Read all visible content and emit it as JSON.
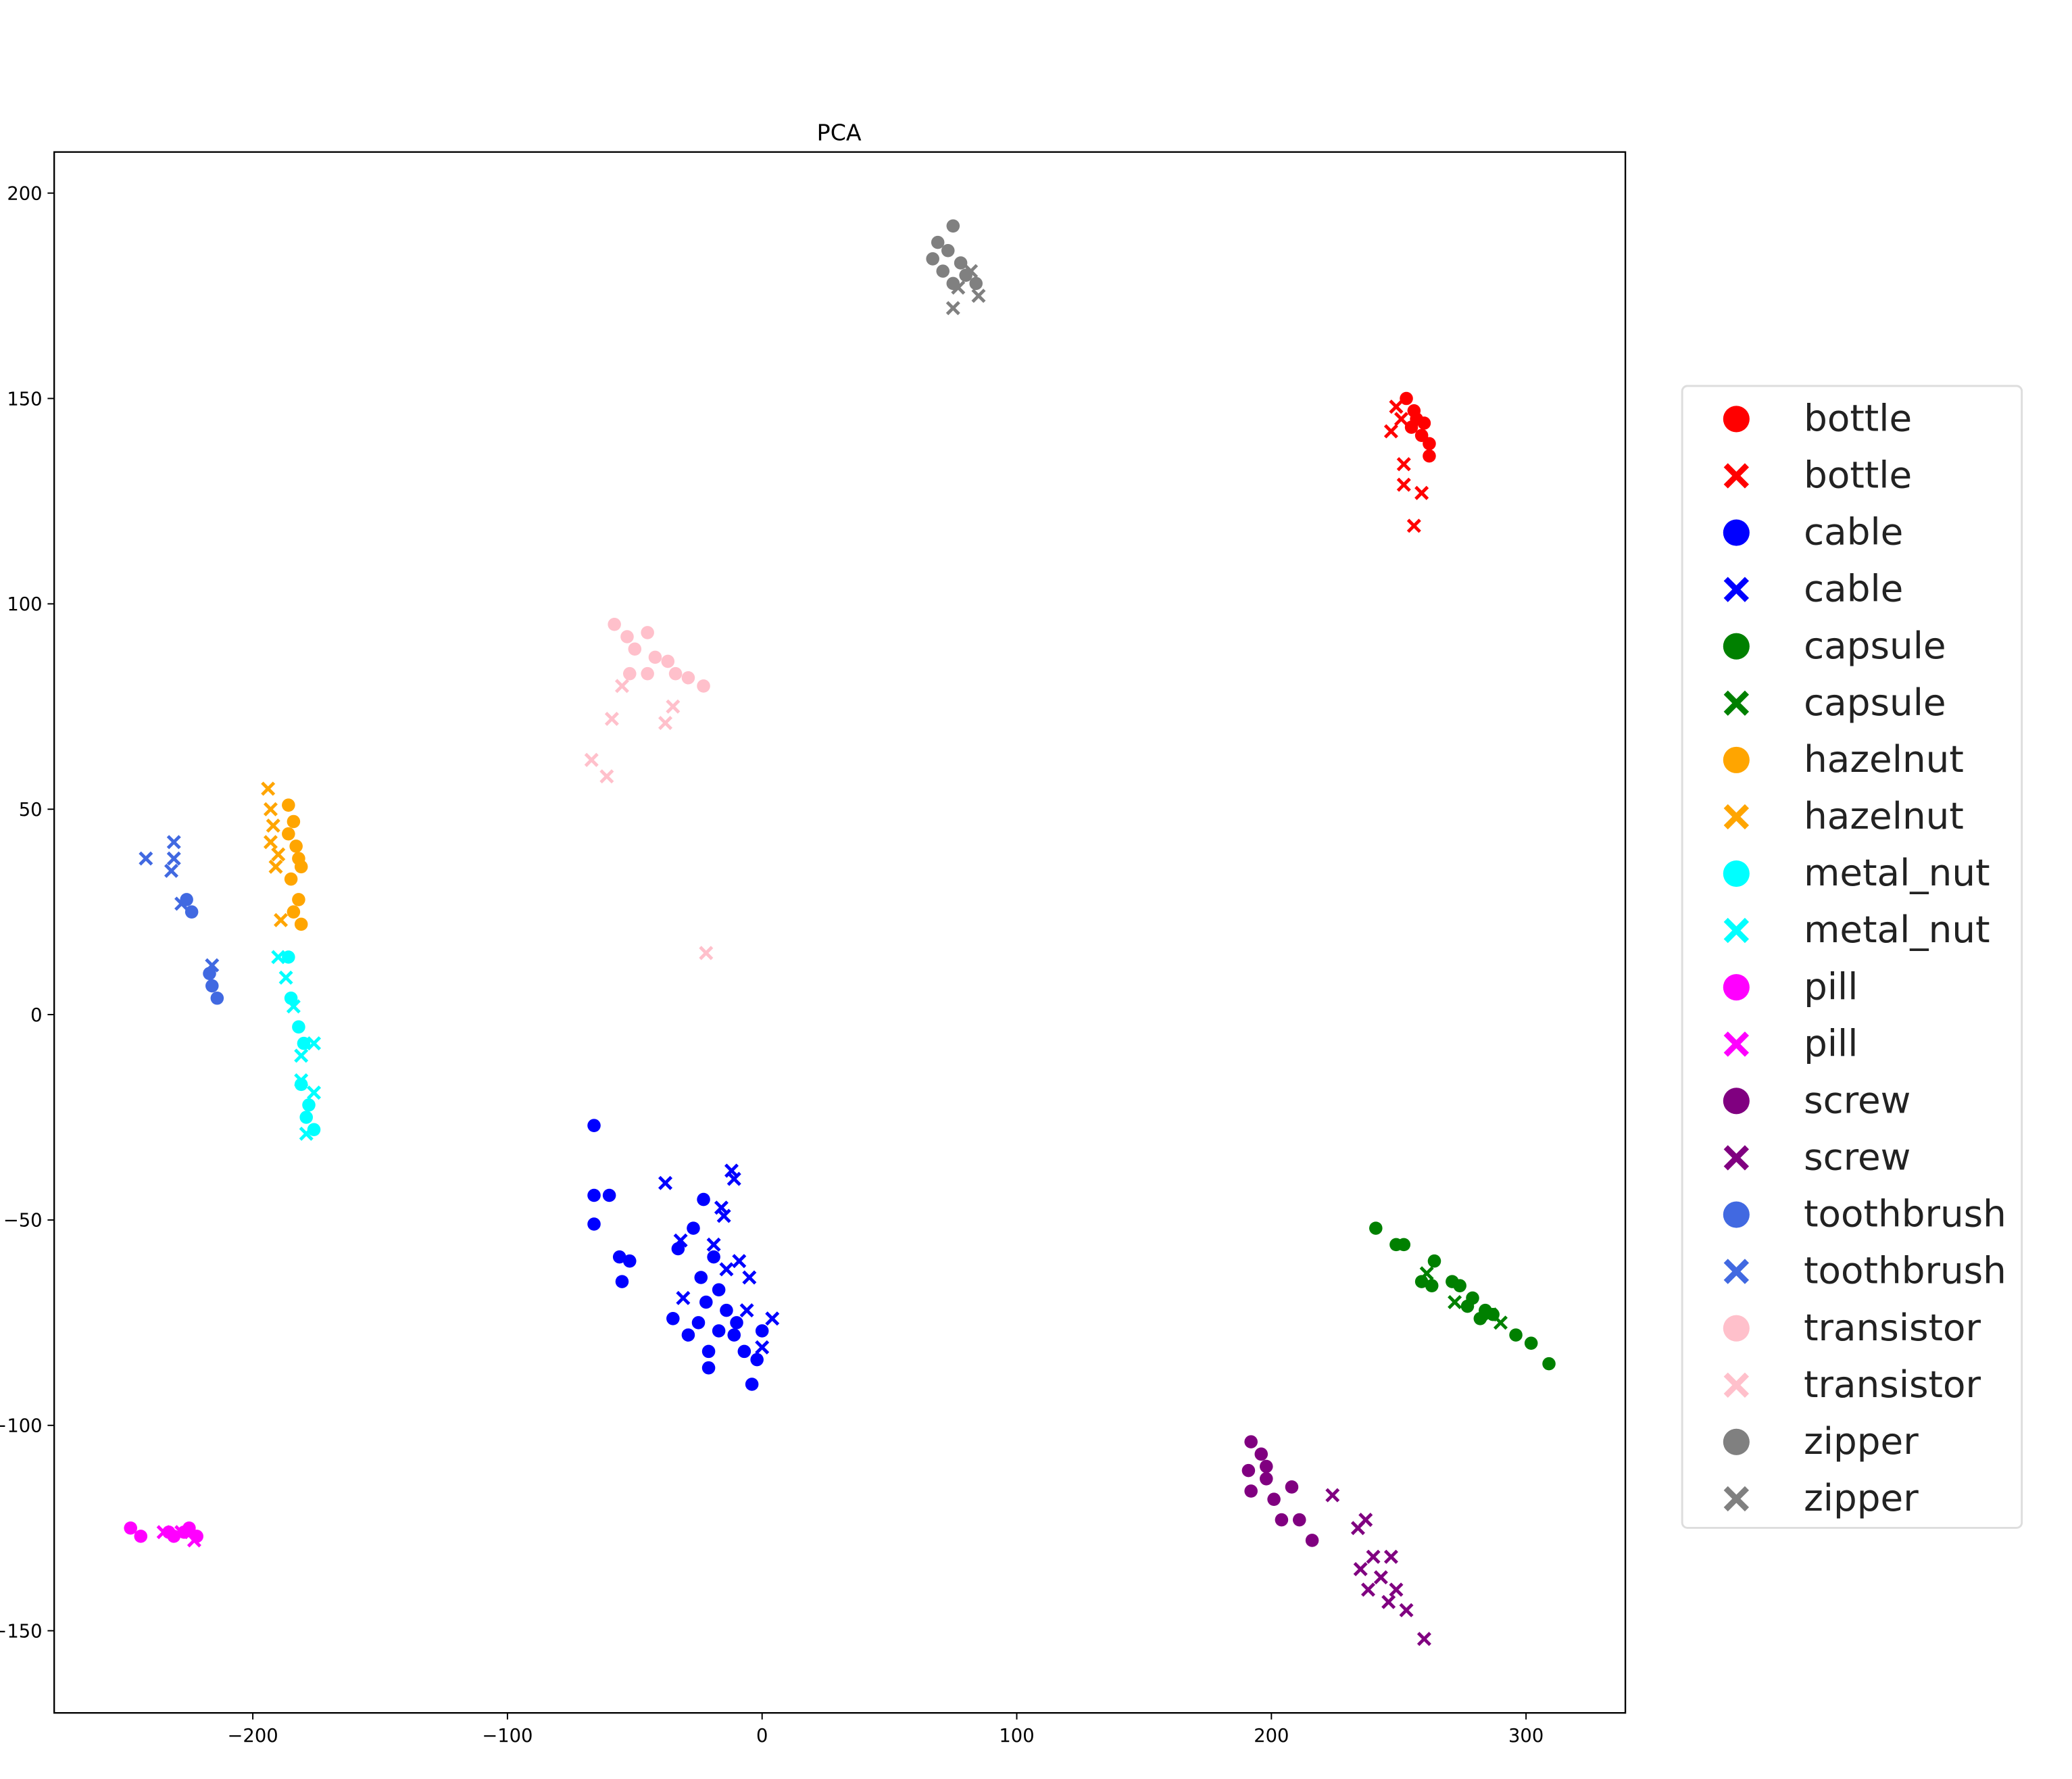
{
  "chart_data": {
    "type": "scatter",
    "title": "PCA",
    "xlabel": "",
    "ylabel": "",
    "xlim": [
      -278,
      339
    ],
    "ylim": [
      -170,
      210
    ],
    "xticks": [
      -200,
      -100,
      0,
      100,
      200,
      300
    ],
    "yticks": [
      200,
      150,
      100,
      50,
      0,
      -50,
      -100,
      -150
    ],
    "xtick_labels": [
      "−200",
      "−100",
      "0",
      "100",
      "200",
      "300"
    ],
    "ytick_labels": [
      "200",
      "150",
      "100",
      "50",
      "0",
      "−50",
      "−100",
      "−150"
    ],
    "grid": false,
    "legend_position": "right, outside",
    "series": [
      {
        "name": "bottle",
        "marker": "circle",
        "color": "#ff0000",
        "points": [
          [
            253,
            150
          ],
          [
            256,
            147
          ],
          [
            255,
            143
          ],
          [
            259,
            141
          ],
          [
            262,
            139
          ],
          [
            262,
            136
          ],
          [
            257,
            145
          ],
          [
            260,
            144
          ]
        ]
      },
      {
        "name": "bottle",
        "marker": "x",
        "color": "#ff0000",
        "points": [
          [
            249,
            148
          ],
          [
            247,
            142
          ],
          [
            252,
            134
          ],
          [
            252,
            129
          ],
          [
            259,
            127
          ],
          [
            256,
            119
          ],
          [
            251,
            145
          ]
        ]
      },
      {
        "name": "cable",
        "marker": "circle",
        "color": "#0000ff",
        "points": [
          [
            -66,
            -27
          ],
          [
            -66,
            -44
          ],
          [
            -60,
            -44
          ],
          [
            -66,
            -51
          ],
          [
            -56,
            -59
          ],
          [
            -52,
            -60
          ],
          [
            -55,
            -65
          ],
          [
            -23,
            -45
          ],
          [
            -27,
            -52
          ],
          [
            -33,
            -57
          ],
          [
            -19,
            -59
          ],
          [
            -24,
            -64
          ],
          [
            -17,
            -67
          ],
          [
            -22,
            -70
          ],
          [
            -14,
            -72
          ],
          [
            -35,
            -74
          ],
          [
            -25,
            -75
          ],
          [
            -29,
            -78
          ],
          [
            -17,
            -77
          ],
          [
            -11,
            -78
          ],
          [
            -21,
            -82
          ],
          [
            -7,
            -82
          ],
          [
            0,
            -77
          ],
          [
            -2,
            -84
          ],
          [
            -21,
            -86
          ],
          [
            -4,
            -90
          ],
          [
            -10,
            -75
          ]
        ]
      },
      {
        "name": "cable",
        "marker": "x",
        "color": "#0000ff",
        "points": [
          [
            -38,
            -41
          ],
          [
            -12,
            -38
          ],
          [
            -11,
            -40
          ],
          [
            -16,
            -47
          ],
          [
            -15,
            -49
          ],
          [
            -32,
            -55
          ],
          [
            -19,
            -56
          ],
          [
            -9,
            -60
          ],
          [
            -14,
            -62
          ],
          [
            -5,
            -64
          ],
          [
            -31,
            -69
          ],
          [
            -6,
            -72
          ],
          [
            4,
            -74
          ],
          [
            0,
            -81
          ]
        ]
      },
      {
        "name": "capsule",
        "marker": "circle",
        "color": "#008000",
        "points": [
          [
            241,
            -52
          ],
          [
            249,
            -56
          ],
          [
            252,
            -56
          ],
          [
            264,
            -60
          ],
          [
            259,
            -65
          ],
          [
            271,
            -65
          ],
          [
            274,
            -66
          ],
          [
            279,
            -69
          ],
          [
            277,
            -71
          ],
          [
            284,
            -72
          ],
          [
            287,
            -73
          ],
          [
            296,
            -78
          ],
          [
            302,
            -80
          ],
          [
            309,
            -85
          ],
          [
            263,
            -66
          ],
          [
            282,
            -74
          ]
        ]
      },
      {
        "name": "capsule",
        "marker": "x",
        "color": "#008000",
        "points": [
          [
            261,
            -63
          ],
          [
            272,
            -70
          ],
          [
            290,
            -75
          ],
          [
            286,
            -73
          ]
        ]
      },
      {
        "name": "hazelnut",
        "marker": "circle",
        "color": "#ffa500",
        "points": [
          [
            -186,
            51
          ],
          [
            -184,
            47
          ],
          [
            -183,
            41
          ],
          [
            -181,
            36
          ],
          [
            -185,
            33
          ],
          [
            -182,
            28
          ],
          [
            -184,
            25
          ],
          [
            -181,
            22
          ],
          [
            -186,
            44
          ],
          [
            -182,
            38
          ]
        ]
      },
      {
        "name": "hazelnut",
        "marker": "x",
        "color": "#ffa500",
        "points": [
          [
            -194,
            55
          ],
          [
            -193,
            50
          ],
          [
            -192,
            46
          ],
          [
            -193,
            42
          ],
          [
            -191,
            36
          ],
          [
            -189,
            23
          ],
          [
            -190,
            39
          ]
        ]
      },
      {
        "name": "metal_nut",
        "marker": "circle",
        "color": "#00ffff",
        "points": [
          [
            -186,
            14
          ],
          [
            -185,
            4
          ],
          [
            -182,
            -3
          ],
          [
            -180,
            -7
          ],
          [
            -181,
            -17
          ],
          [
            -178,
            -22
          ],
          [
            -176,
            -28
          ],
          [
            -179,
            -25
          ]
        ]
      },
      {
        "name": "metal_nut",
        "marker": "x",
        "color": "#00ffff",
        "points": [
          [
            -190,
            14
          ],
          [
            -187,
            9
          ],
          [
            -184,
            2
          ],
          [
            -176,
            -7
          ],
          [
            -181,
            -10
          ],
          [
            -181,
            -16
          ],
          [
            -176,
            -19
          ],
          [
            -179,
            -29
          ]
        ]
      },
      {
        "name": "pill",
        "marker": "circle",
        "color": "#ff00ff",
        "points": [
          [
            -248,
            -125
          ],
          [
            -244,
            -127
          ],
          [
            -233,
            -126
          ],
          [
            -227,
            -126
          ],
          [
            -222,
            -127
          ],
          [
            -231,
            -127
          ],
          [
            -225,
            -125
          ]
        ]
      },
      {
        "name": "pill",
        "marker": "x",
        "color": "#ff00ff",
        "points": [
          [
            -228,
            -126
          ],
          [
            -223,
            -128
          ],
          [
            -235,
            -126
          ]
        ]
      },
      {
        "name": "screw",
        "marker": "circle",
        "color": "#800080",
        "points": [
          [
            192,
            -104
          ],
          [
            196,
            -107
          ],
          [
            191,
            -111
          ],
          [
            198,
            -110
          ],
          [
            192,
            -116
          ],
          [
            201,
            -118
          ],
          [
            208,
            -115
          ],
          [
            204,
            -123
          ],
          [
            211,
            -123
          ],
          [
            216,
            -128
          ],
          [
            198,
            -113
          ]
        ]
      },
      {
        "name": "screw",
        "marker": "x",
        "color": "#800080",
        "points": [
          [
            224,
            -117
          ],
          [
            237,
            -123
          ],
          [
            234,
            -125
          ],
          [
            240,
            -132
          ],
          [
            247,
            -132
          ],
          [
            235,
            -135
          ],
          [
            243,
            -137
          ],
          [
            238,
            -140
          ],
          [
            249,
            -140
          ],
          [
            246,
            -143
          ],
          [
            253,
            -145
          ],
          [
            260,
            -152
          ]
        ]
      },
      {
        "name": "toothbrush",
        "marker": "circle",
        "color": "#4169e1",
        "points": [
          [
            -226,
            28
          ],
          [
            -224,
            25
          ],
          [
            -217,
            10
          ],
          [
            -216,
            7
          ],
          [
            -214,
            4
          ]
        ]
      },
      {
        "name": "toothbrush",
        "marker": "x",
        "color": "#4169e1",
        "points": [
          [
            -242,
            38
          ],
          [
            -231,
            42
          ],
          [
            -231,
            38
          ],
          [
            -232,
            35
          ],
          [
            -228,
            27
          ],
          [
            -216,
            12
          ]
        ]
      },
      {
        "name": "transistor",
        "marker": "circle",
        "color": "#ffc0cb",
        "points": [
          [
            -58,
            95
          ],
          [
            -53,
            92
          ],
          [
            -45,
            93
          ],
          [
            -50,
            89
          ],
          [
            -42,
            87
          ],
          [
            -37,
            86
          ],
          [
            -34,
            83
          ],
          [
            -29,
            82
          ],
          [
            -23,
            80
          ],
          [
            -52,
            83
          ],
          [
            -45,
            83
          ]
        ]
      },
      {
        "name": "transistor",
        "marker": "x",
        "color": "#ffc0cb",
        "points": [
          [
            -55,
            80
          ],
          [
            -35,
            75
          ],
          [
            -38,
            71
          ],
          [
            -59,
            72
          ],
          [
            -67,
            62
          ],
          [
            -61,
            58
          ],
          [
            -22,
            15
          ]
        ]
      },
      {
        "name": "zipper",
        "marker": "circle",
        "color": "#808080",
        "points": [
          [
            75,
            192
          ],
          [
            69,
            188
          ],
          [
            73,
            186
          ],
          [
            67,
            184
          ],
          [
            78,
            183
          ],
          [
            71,
            181
          ],
          [
            75,
            178
          ],
          [
            84,
            178
          ],
          [
            80,
            180
          ]
        ]
      },
      {
        "name": "zipper",
        "marker": "x",
        "color": "#808080",
        "points": [
          [
            75,
            172
          ],
          [
            85,
            175
          ],
          [
            77,
            177
          ],
          [
            82,
            181
          ]
        ]
      }
    ]
  }
}
